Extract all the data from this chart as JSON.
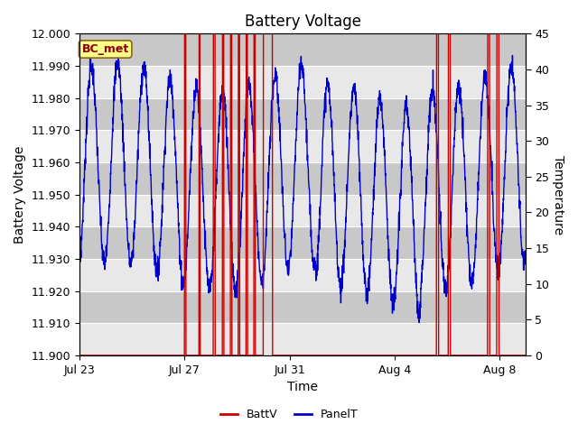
{
  "title": "Battery Voltage",
  "xlabel": "Time",
  "ylabel_left": "Battery Voltage",
  "ylabel_right": "Temperature",
  "annotation_label": "BC_met",
  "ylim_left": [
    11.9,
    12.0
  ],
  "ylim_right": [
    0,
    45
  ],
  "yticks_left": [
    11.9,
    11.91,
    11.92,
    11.93,
    11.94,
    11.95,
    11.96,
    11.97,
    11.98,
    11.99,
    12.0
  ],
  "yticks_right": [
    0,
    5,
    10,
    15,
    20,
    25,
    30,
    35,
    40,
    45
  ],
  "xtick_positions": [
    0,
    4,
    8,
    12,
    16
  ],
  "xtick_labels": [
    "Jul 23",
    "Jul 27",
    "Jul 31",
    "Aug 4",
    "Aug 8"
  ],
  "total_days": 17.0,
  "batt_color": "#cc0000",
  "panel_color": "#0000cc",
  "plot_bg_color": "#e8e8e8",
  "band_color_dark": "#c8c8c8",
  "band_color_light": "#e8e8e8",
  "grid_color": "white",
  "title_fontsize": 12,
  "axis_label_fontsize": 10,
  "tick_fontsize": 9,
  "legend_fontsize": 9,
  "spike_positions": [
    4.0,
    4.55,
    5.1,
    5.45,
    5.75,
    6.05,
    6.35,
    6.65,
    7.0,
    13.6,
    14.05,
    15.55,
    15.9
  ],
  "spike_widths": [
    0.05,
    0.05,
    0.07,
    0.05,
    0.05,
    0.05,
    0.05,
    0.05,
    0.35,
    0.08,
    0.08,
    0.08,
    0.08
  ]
}
